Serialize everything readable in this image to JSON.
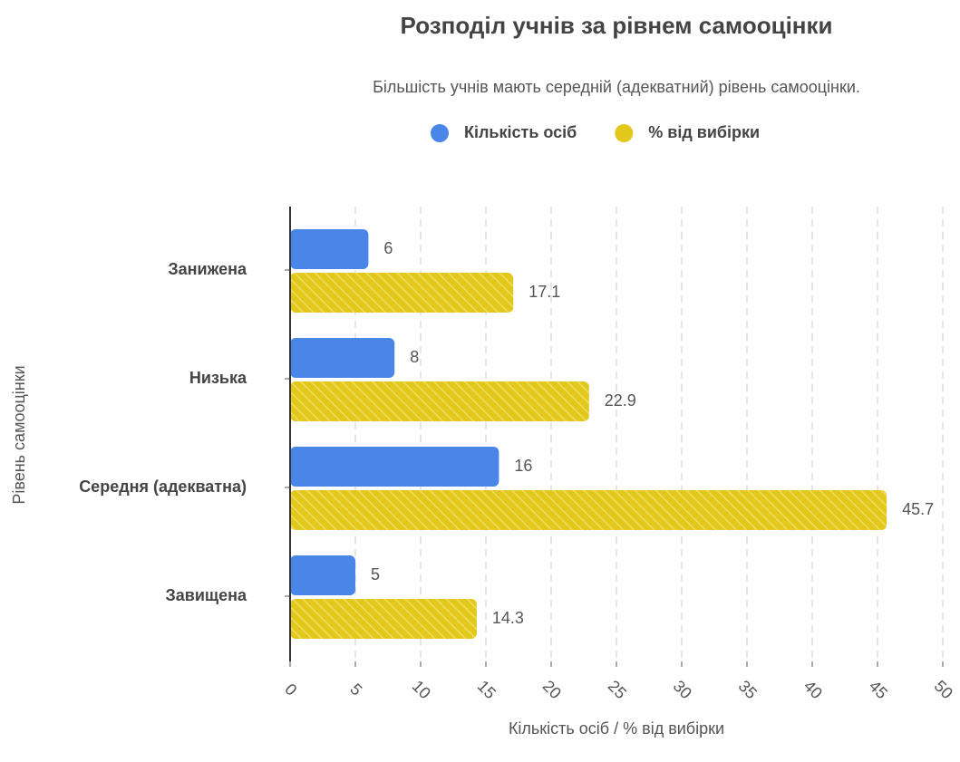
{
  "chart_data": {
    "type": "hbar",
    "title": "Розподіл учнів за рівнем самооцінки",
    "subtitle": "Більшість учнів мають середній (адекватний) рівень самооцінки.",
    "x_label": "Кількість осіб / % від вибірки",
    "y_label": "Рівень самооцінки",
    "categories": [
      "Занижена",
      "Низька",
      "Середня (адекватна)",
      "Завищена"
    ],
    "series": [
      {
        "name": "Кількість осіб",
        "color": "#4a86e8",
        "values": [
          6,
          8,
          16,
          5
        ]
      },
      {
        "name": "% від вибірки",
        "color": "#e2c81a",
        "values": [
          17.1,
          22.9,
          45.7,
          14.3
        ]
      }
    ],
    "xlim": [
      0,
      50
    ],
    "xticks": [
      0,
      5,
      10,
      15,
      20,
      25,
      30,
      35,
      40,
      45,
      50
    ],
    "grid": true,
    "legend": "top"
  }
}
